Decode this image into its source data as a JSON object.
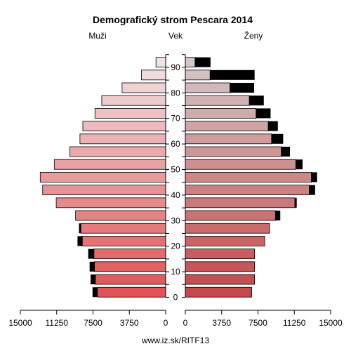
{
  "chart_data": {
    "type": "bar",
    "title": "Demografický strom Pescara 2014",
    "left_header": "Muži",
    "center_header": "Vek",
    "right_header": "Ženy",
    "footer": "www.iz.sk/RITF13",
    "xlim": [
      0,
      15000
    ],
    "x_ticks_left": [
      "15000",
      "11250",
      "7500",
      "3750",
      "0"
    ],
    "x_ticks_right": [
      "0",
      "3750",
      "7500",
      "11250",
      "15000"
    ],
    "age_labels": [
      {
        "age": 90,
        "label": "90"
      },
      {
        "age": 80,
        "label": "80"
      },
      {
        "age": 70,
        "label": "70"
      },
      {
        "age": 60,
        "label": "60"
      },
      {
        "age": 50,
        "label": "50"
      },
      {
        "age": 40,
        "label": "40"
      },
      {
        "age": 30,
        "label": "30"
      },
      {
        "age": 20,
        "label": "20"
      },
      {
        "age": 10,
        "label": "10"
      },
      {
        "age": 0,
        "label": "0"
      }
    ],
    "categories": [
      "0-4",
      "5-9",
      "10-14",
      "15-19",
      "20-24",
      "25-29",
      "30-34",
      "35-39",
      "40-44",
      "45-49",
      "50-54",
      "55-59",
      "60-64",
      "65-69",
      "70-74",
      "75-79",
      "80-84",
      "85-89",
      "90+"
    ],
    "series": [
      {
        "values": [
          7050,
          7250,
          7350,
          7400,
          8600,
          8750,
          9300,
          11300,
          12700,
          12950,
          11500,
          9900,
          8850,
          8550,
          7300,
          6600,
          4500,
          2500,
          1000
        ]
      },
      {
        "values": [
          500,
          500,
          500,
          600,
          500,
          200,
          0,
          0,
          0,
          0,
          0,
          0,
          0,
          0,
          0,
          0,
          0,
          0,
          0
        ]
      },
      {
        "values": [
          6850,
          7150,
          7150,
          7150,
          8200,
          8700,
          9300,
          11300,
          12800,
          13000,
          11400,
          9900,
          8900,
          8550,
          7300,
          6600,
          4600,
          2550,
          1000
        ]
      },
      {
        "values": [
          0,
          0,
          0,
          0,
          0,
          0,
          500,
          200,
          600,
          600,
          700,
          900,
          1200,
          1000,
          1500,
          1500,
          2500,
          4600,
          1600
        ]
      }
    ],
    "grid": false
  }
}
